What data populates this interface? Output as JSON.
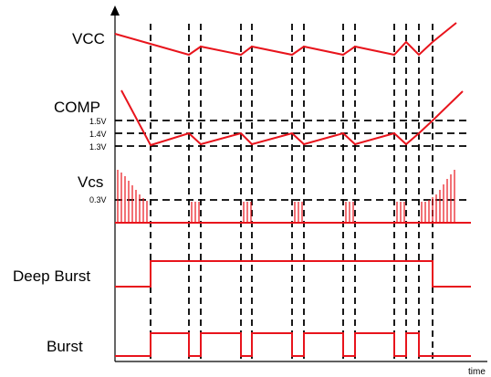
{
  "signals": {
    "vcc": "VCC",
    "comp": "COMP",
    "vcs": "Vcs",
    "deep_burst": "Deep Burst",
    "burst": "Burst"
  },
  "levels": {
    "l15": "1.5V",
    "l14": "1.4V",
    "l13": "1.3V",
    "l03": "0.3V"
  },
  "axis": {
    "time": "time"
  },
  "colors": {
    "trace": "#e8141c",
    "guide": "#000000"
  }
}
